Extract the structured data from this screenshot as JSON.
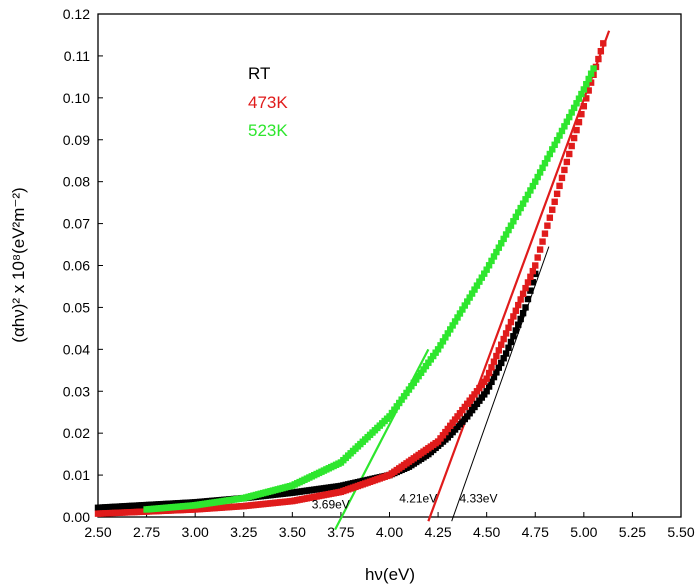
{
  "chart_data": {
    "type": "scatter",
    "xlabel": "hν(eV)",
    "ylabel": "(αhν)² x 10⁸(eV²m⁻²)",
    "xlim": [
      2.5,
      5.5
    ],
    "ylim": [
      0.0,
      0.12
    ],
    "x_ticks": [
      "2.50",
      "2.75",
      "3.00",
      "3.25",
      "3.50",
      "3.75",
      "4.00",
      "4.25",
      "4.50",
      "4.75",
      "5.00",
      "5.25",
      "5.50"
    ],
    "y_ticks": [
      "0.00",
      "0.01",
      "0.02",
      "0.03",
      "0.04",
      "0.05",
      "0.06",
      "0.07",
      "0.08",
      "0.09",
      "0.10",
      "0.11",
      "0.12"
    ],
    "grid": false,
    "legend_position": "top-left",
    "series": [
      {
        "name": "RT",
        "color": "#000000",
        "marker": "square",
        "x": [
          2.5,
          3.0,
          3.25,
          3.5,
          3.75,
          4.0,
          4.1,
          4.2,
          4.3,
          4.4,
          4.5,
          4.6,
          4.7,
          4.75
        ],
        "y": [
          0.0022,
          0.0035,
          0.0045,
          0.0058,
          0.0074,
          0.01,
          0.012,
          0.015,
          0.019,
          0.024,
          0.03,
          0.039,
          0.05,
          0.058
        ]
      },
      {
        "name": "473K",
        "color": "#e01b1b",
        "marker": "square",
        "x": [
          2.5,
          3.0,
          3.25,
          3.5,
          3.75,
          4.0,
          4.25,
          4.5,
          4.75,
          5.0,
          5.1
        ],
        "y": [
          0.0008,
          0.0018,
          0.0026,
          0.0038,
          0.006,
          0.01,
          0.018,
          0.033,
          0.06,
          0.098,
          0.113
        ]
      },
      {
        "name": "523K",
        "color": "#2ee62e",
        "marker": "square",
        "x": [
          2.75,
          3.0,
          3.25,
          3.5,
          3.75,
          4.0,
          4.25,
          4.5,
          4.75,
          5.0,
          5.05
        ],
        "y": [
          0.0018,
          0.0028,
          0.0045,
          0.0075,
          0.013,
          0.024,
          0.04,
          0.059,
          0.08,
          0.102,
          0.107
        ]
      }
    ],
    "fit_lines": [
      {
        "color": "#2ee62e",
        "x": [
          3.72,
          4.2
        ],
        "y": [
          -0.003,
          0.04
        ]
      },
      {
        "color": "#e01b1b",
        "x": [
          4.2,
          5.13
        ],
        "y": [
          -0.001,
          0.116
        ]
      },
      {
        "color": "#000000",
        "x": [
          4.32,
          4.82
        ],
        "y": [
          -0.001,
          0.0645
        ]
      }
    ],
    "annotations": [
      {
        "text": "3.69eV",
        "x": 3.6,
        "y": 0.002
      },
      {
        "text": "4.21eV",
        "x": 4.05,
        "y": 0.0035
      },
      {
        "text": "4.33eV",
        "x": 4.36,
        "y": 0.0035
      }
    ]
  }
}
